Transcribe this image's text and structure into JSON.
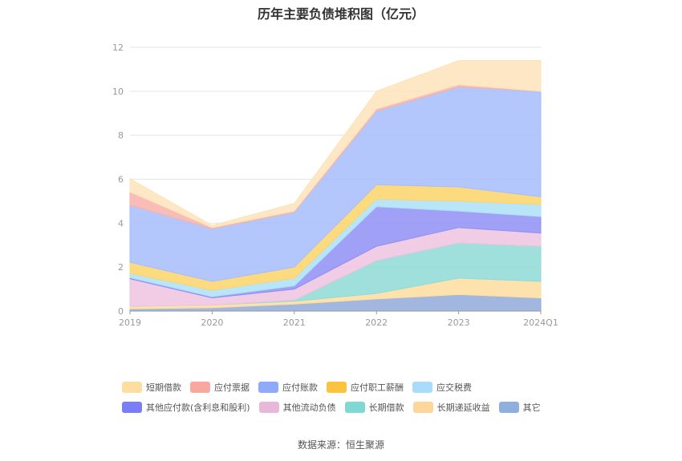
{
  "chart_data": {
    "type": "area",
    "stacked": true,
    "title": "历年主要负债堆积图（亿元）",
    "categories": [
      "2019",
      "2020",
      "2021",
      "2022",
      "2023",
      "2024Q1"
    ],
    "y_ticks": [
      "0",
      "2",
      "4",
      "6",
      "8",
      "10",
      "12"
    ],
    "ylim": [
      0,
      12
    ],
    "grid": true,
    "legend_position": "bottom",
    "series": [
      {
        "name": "其它",
        "color": "#91aadb",
        "values": [
          0.1,
          0.15,
          0.32,
          0.55,
          0.75,
          0.6
        ]
      },
      {
        "name": "长期递延收益",
        "color": "#fddda0",
        "values": [
          0.12,
          0.13,
          0.13,
          0.25,
          0.75,
          0.75
        ]
      },
      {
        "name": "长期借款",
        "color": "#8edbd6",
        "values": [
          0.0,
          0.0,
          0.05,
          1.5,
          1.6,
          1.6
        ]
      },
      {
        "name": "其他流动负债",
        "color": "#efc3e0",
        "values": [
          1.25,
          0.32,
          0.5,
          0.65,
          0.7,
          0.6
        ]
      },
      {
        "name": "其他应付款(含利息和股利)",
        "color": "#8f8ff5",
        "values": [
          0.05,
          0.05,
          0.15,
          1.8,
          0.75,
          0.75
        ]
      },
      {
        "name": "应交税费",
        "color": "#ade0f8",
        "values": [
          0.2,
          0.3,
          0.35,
          0.35,
          0.45,
          0.55
        ]
      },
      {
        "name": "应付职工薪酬",
        "color": "#fcd56a",
        "values": [
          0.5,
          0.4,
          0.5,
          0.65,
          0.65,
          0.35
        ]
      },
      {
        "name": "应付账款",
        "color": "#a6bdfd",
        "values": [
          2.6,
          2.4,
          2.5,
          3.35,
          4.55,
          4.8
        ]
      },
      {
        "name": "应付票据",
        "color": "#f8b2aa",
        "values": [
          0.6,
          0.05,
          0.05,
          0.1,
          0.1,
          0.0
        ]
      },
      {
        "name": "短期借款",
        "color": "#fde3ba",
        "values": [
          0.6,
          0.1,
          0.35,
          0.8,
          1.1,
          1.4
        ]
      }
    ],
    "source": "数据来源：恒生聚源"
  },
  "legend_rows": [
    [
      {
        "label": "短期借款",
        "color": "#fddda0"
      },
      {
        "label": "应付票据",
        "color": "#f8a89e"
      },
      {
        "label": "应付账款",
        "color": "#8fa9fb"
      },
      {
        "label": "应付职工薪酬",
        "color": "#fbc43c"
      },
      {
        "label": "应交税费",
        "color": "#a8dcfa"
      }
    ],
    [
      {
        "label": "其他应付款(含利息和股利)",
        "color": "#7b7df6"
      },
      {
        "label": "其他流动负债",
        "color": "#e8b8db"
      },
      {
        "label": "长期借款",
        "color": "#7fd8d3"
      },
      {
        "label": "长期递延收益",
        "color": "#fed59a"
      },
      {
        "label": "其它",
        "color": "#8fb0dc"
      }
    ]
  ]
}
